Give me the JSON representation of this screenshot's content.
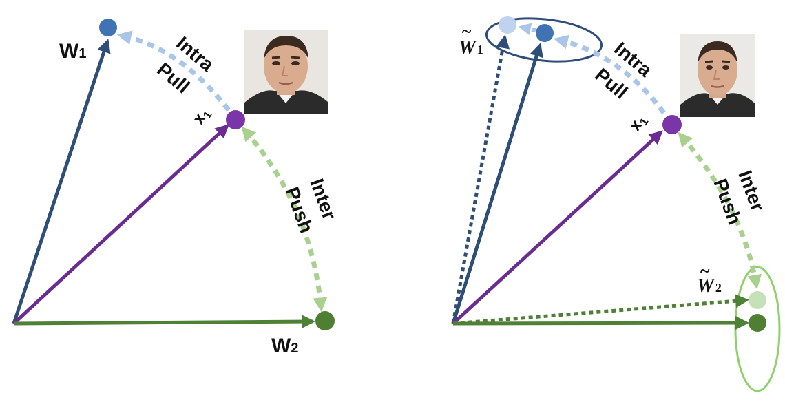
{
  "colors": {
    "w1": "#2E4E78",
    "w1_dot": "#3F73B4",
    "w1_light": "#BFD3EE",
    "x1": "#6A2C91",
    "x1_dot": "#7A35A8",
    "w2": "#4E8136",
    "w2_dot": "#4E7F33",
    "w2_light": "#C6E1B7",
    "pull_arrow": "#A9C6E8",
    "push_arrow": "#A9D08E",
    "ellipse_w1": "#2E4E78",
    "ellipse_w2": "#8FD16A"
  },
  "left_panel": {
    "w1_label": "W",
    "w1_sub": "1",
    "x1_label": "x",
    "x1_sub": "1",
    "w2_label": "W",
    "w2_sub": "2",
    "intra_word1": "Intra",
    "intra_word2": "Pull",
    "inter_word1": "Inter",
    "inter_word2": "Push",
    "face_icon": "face-photo-icon"
  },
  "right_panel": {
    "w1_tilde_label": "W",
    "w1_tilde_sub": "1",
    "x1_label": "x",
    "x1_sub": "1",
    "w2_tilde_label": "W",
    "w2_tilde_sub": "2",
    "tilde": "~",
    "intra_word1": "Intra",
    "intra_word2": "Pull",
    "inter_word1": "Inter",
    "inter_word2": "Push",
    "face_icon": "face-photo-icon"
  }
}
